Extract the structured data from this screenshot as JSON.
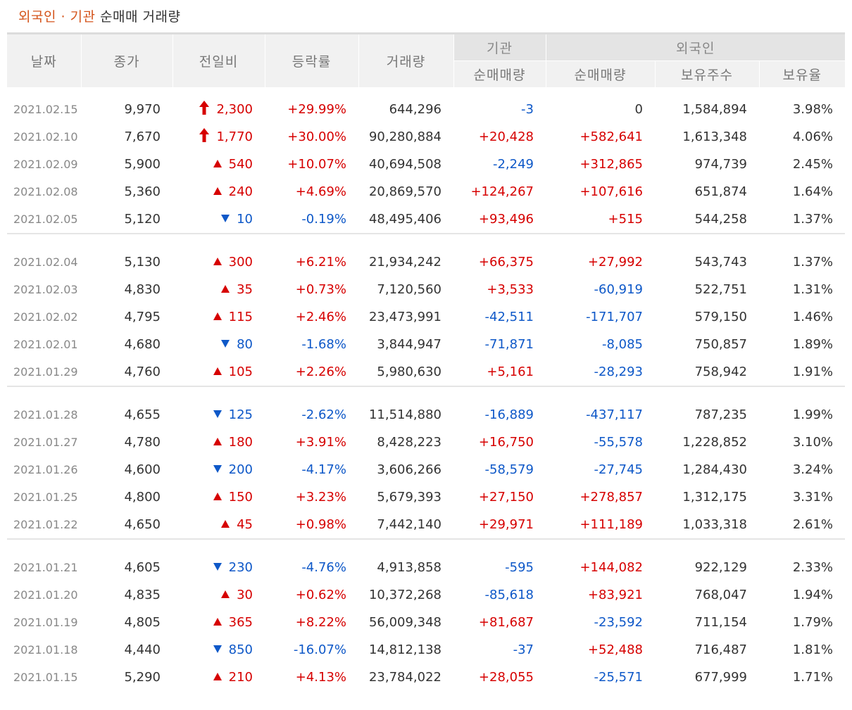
{
  "title": {
    "accent": "외국인 · 기관",
    "rest": "순매매 거래량"
  },
  "headers": {
    "date": "날짜",
    "close": "종가",
    "change": "전일비",
    "rate": "등락률",
    "volume": "거래량",
    "institution_group": "기관",
    "foreign_group": "외국인",
    "inst_net": "순매매량",
    "foreign_net": "순매매량",
    "foreign_holdings": "보유주수",
    "foreign_ratio": "보유율"
  },
  "colors": {
    "up": "#d60000",
    "down": "#0e58c8",
    "accent": "#d4541b"
  },
  "rows": [
    {
      "date": "2021.02.15",
      "close": "9,970",
      "change": "2,300",
      "dir": "limit-up",
      "rate": "+29.99%",
      "volume": "644,296",
      "inst": "-3",
      "foreign": "0",
      "holdings": "1,584,894",
      "ratio": "3.98%"
    },
    {
      "date": "2021.02.10",
      "close": "7,670",
      "change": "1,770",
      "dir": "limit-up",
      "rate": "+30.00%",
      "volume": "90,280,884",
      "inst": "+20,428",
      "foreign": "+582,641",
      "holdings": "1,613,348",
      "ratio": "4.06%"
    },
    {
      "date": "2021.02.09",
      "close": "5,900",
      "change": "540",
      "dir": "up",
      "rate": "+10.07%",
      "volume": "40,694,508",
      "inst": "-2,249",
      "foreign": "+312,865",
      "holdings": "974,739",
      "ratio": "2.45%"
    },
    {
      "date": "2021.02.08",
      "close": "5,360",
      "change": "240",
      "dir": "up",
      "rate": "+4.69%",
      "volume": "20,869,570",
      "inst": "+124,267",
      "foreign": "+107,616",
      "holdings": "651,874",
      "ratio": "1.64%"
    },
    {
      "date": "2021.02.05",
      "close": "5,120",
      "change": "10",
      "dir": "down",
      "rate": "-0.19%",
      "volume": "48,495,406",
      "inst": "+93,496",
      "foreign": "+515",
      "holdings": "544,258",
      "ratio": "1.37%"
    },
    {
      "date": "2021.02.04",
      "close": "5,130",
      "change": "300",
      "dir": "up",
      "rate": "+6.21%",
      "volume": "21,934,242",
      "inst": "+66,375",
      "foreign": "+27,992",
      "holdings": "543,743",
      "ratio": "1.37%"
    },
    {
      "date": "2021.02.03",
      "close": "4,830",
      "change": "35",
      "dir": "up",
      "rate": "+0.73%",
      "volume": "7,120,560",
      "inst": "+3,533",
      "foreign": "-60,919",
      "holdings": "522,751",
      "ratio": "1.31%"
    },
    {
      "date": "2021.02.02",
      "close": "4,795",
      "change": "115",
      "dir": "up",
      "rate": "+2.46%",
      "volume": "23,473,991",
      "inst": "-42,511",
      "foreign": "-171,707",
      "holdings": "579,150",
      "ratio": "1.46%"
    },
    {
      "date": "2021.02.01",
      "close": "4,680",
      "change": "80",
      "dir": "down",
      "rate": "-1.68%",
      "volume": "3,844,947",
      "inst": "-71,871",
      "foreign": "-8,085",
      "holdings": "750,857",
      "ratio": "1.89%"
    },
    {
      "date": "2021.01.29",
      "close": "4,760",
      "change": "105",
      "dir": "up",
      "rate": "+2.26%",
      "volume": "5,980,630",
      "inst": "+5,161",
      "foreign": "-28,293",
      "holdings": "758,942",
      "ratio": "1.91%"
    },
    {
      "date": "2021.01.28",
      "close": "4,655",
      "change": "125",
      "dir": "down",
      "rate": "-2.62%",
      "volume": "11,514,880",
      "inst": "-16,889",
      "foreign": "-437,117",
      "holdings": "787,235",
      "ratio": "1.99%"
    },
    {
      "date": "2021.01.27",
      "close": "4,780",
      "change": "180",
      "dir": "up",
      "rate": "+3.91%",
      "volume": "8,428,223",
      "inst": "+16,750",
      "foreign": "-55,578",
      "holdings": "1,228,852",
      "ratio": "3.10%"
    },
    {
      "date": "2021.01.26",
      "close": "4,600",
      "change": "200",
      "dir": "down",
      "rate": "-4.17%",
      "volume": "3,606,266",
      "inst": "-58,579",
      "foreign": "-27,745",
      "holdings": "1,284,430",
      "ratio": "3.24%"
    },
    {
      "date": "2021.01.25",
      "close": "4,800",
      "change": "150",
      "dir": "up",
      "rate": "+3.23%",
      "volume": "5,679,393",
      "inst": "+27,150",
      "foreign": "+278,857",
      "holdings": "1,312,175",
      "ratio": "3.31%"
    },
    {
      "date": "2021.01.22",
      "close": "4,650",
      "change": "45",
      "dir": "up",
      "rate": "+0.98%",
      "volume": "7,442,140",
      "inst": "+29,971",
      "foreign": "+111,189",
      "holdings": "1,033,318",
      "ratio": "2.61%"
    },
    {
      "date": "2021.01.21",
      "close": "4,605",
      "change": "230",
      "dir": "down",
      "rate": "-4.76%",
      "volume": "4,913,858",
      "inst": "-595",
      "foreign": "+144,082",
      "holdings": "922,129",
      "ratio": "2.33%"
    },
    {
      "date": "2021.01.20",
      "close": "4,835",
      "change": "30",
      "dir": "up",
      "rate": "+0.62%",
      "volume": "10,372,268",
      "inst": "-85,618",
      "foreign": "+83,921",
      "holdings": "768,047",
      "ratio": "1.94%"
    },
    {
      "date": "2021.01.19",
      "close": "4,805",
      "change": "365",
      "dir": "up",
      "rate": "+8.22%",
      "volume": "56,009,348",
      "inst": "+81,687",
      "foreign": "-23,592",
      "holdings": "711,154",
      "ratio": "1.79%"
    },
    {
      "date": "2021.01.18",
      "close": "4,440",
      "change": "850",
      "dir": "down",
      "rate": "-16.07%",
      "volume": "14,812,138",
      "inst": "-37",
      "foreign": "+52,488",
      "holdings": "716,487",
      "ratio": "1.81%"
    },
    {
      "date": "2021.01.15",
      "close": "5,290",
      "change": "210",
      "dir": "up",
      "rate": "+4.13%",
      "volume": "23,784,022",
      "inst": "+28,055",
      "foreign": "-25,571",
      "holdings": "677,999",
      "ratio": "1.71%"
    }
  ]
}
